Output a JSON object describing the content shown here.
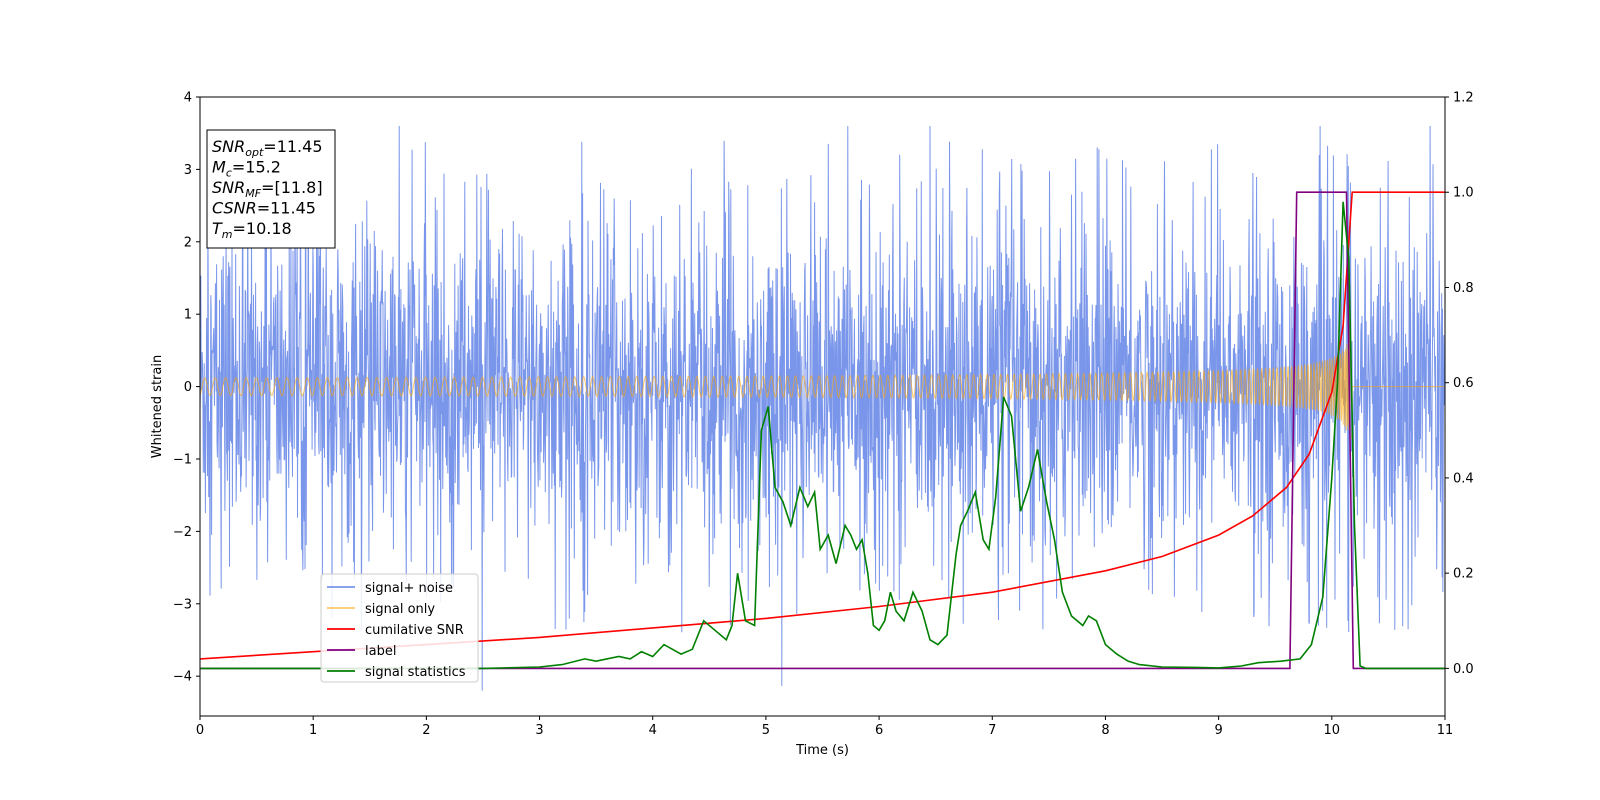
{
  "chart_data": {
    "type": "line",
    "xlabel": "Time (s)",
    "ylabel": "Whitened strain",
    "xlim": [
      0,
      11
    ],
    "ylim_left": [
      -4.55,
      4.0
    ],
    "ylim_right": [
      -0.1,
      1.2
    ],
    "x_ticks": [
      0,
      1,
      2,
      3,
      4,
      5,
      6,
      7,
      8,
      9,
      10,
      11
    ],
    "y_ticks_left": [
      -4,
      -3,
      -2,
      -1,
      0,
      1,
      2,
      3,
      4
    ],
    "y_ticks_right": [
      0.0,
      0.2,
      0.4,
      0.6,
      0.8,
      1.0,
      1.2
    ],
    "y_tick_labels_left": [
      "−4",
      "−3",
      "−2",
      "−1",
      "0",
      "1",
      "2",
      "3",
      "4"
    ],
    "y_tick_labels_right": [
      "0.0",
      "0.2",
      "0.4",
      "0.6",
      "0.8",
      "1.0",
      "1.2"
    ],
    "x_tick_labels": [
      "0",
      "1",
      "2",
      "3",
      "4",
      "5",
      "6",
      "7",
      "8",
      "9",
      "10",
      "11"
    ],
    "grid": false,
    "legend_placement": "lower-left",
    "annotation": {
      "lines": [
        {
          "sym": "SNR",
          "sub": "opt",
          "text": "=11.45"
        },
        {
          "sym": "M",
          "sub": "c",
          "text": "=15.2"
        },
        {
          "sym": "SNR",
          "sub": "MF",
          "text": "=[11.8]"
        },
        {
          "sym": "CSNR",
          "sub": "",
          "text": "=11.45"
        },
        {
          "sym": "T",
          "sub": "m",
          "text": "=10.18"
        }
      ]
    },
    "series": [
      {
        "name": "signal+ noise",
        "color": "#4169e1",
        "axis": "left",
        "kind": "noise",
        "envelope": {
          "typical_amplitude": 2.0,
          "max_spike": 3.6,
          "min_spike": -4.2
        }
      },
      {
        "name": "signal only",
        "color": "#ffa500",
        "axis": "left",
        "kind": "chirp",
        "merger_time": 10.18,
        "peak_amplitude": 0.9
      },
      {
        "name": "cumilative SNR",
        "color": "#ff0000",
        "axis": "right",
        "x": [
          0,
          1,
          2,
          3,
          4,
          5,
          6,
          7,
          8,
          8.5,
          9,
          9.3,
          9.6,
          9.8,
          10.0,
          10.1,
          10.18,
          10.2,
          11
        ],
        "values": [
          0.02,
          0.035,
          0.05,
          0.065,
          0.085,
          0.105,
          0.13,
          0.16,
          0.205,
          0.235,
          0.28,
          0.32,
          0.38,
          0.45,
          0.58,
          0.72,
          1.0,
          1.0,
          1.0
        ]
      },
      {
        "name": "label",
        "color": "#800080",
        "axis": "right",
        "x": [
          0,
          9.63,
          9.69,
          10.13,
          10.19,
          11
        ],
        "values": [
          0,
          0,
          1,
          1,
          0,
          0
        ]
      },
      {
        "name": "signal statistics",
        "color": "#008000",
        "axis": "right",
        "x": [
          0,
          2.5,
          3.0,
          3.2,
          3.4,
          3.5,
          3.7,
          3.8,
          3.9,
          4.0,
          4.1,
          4.25,
          4.35,
          4.45,
          4.55,
          4.65,
          4.7,
          4.75,
          4.82,
          4.9,
          4.96,
          5.02,
          5.08,
          5.15,
          5.22,
          5.3,
          5.37,
          5.43,
          5.48,
          5.55,
          5.62,
          5.7,
          5.75,
          5.8,
          5.85,
          5.9,
          5.95,
          6.0,
          6.05,
          6.1,
          6.15,
          6.22,
          6.3,
          6.38,
          6.45,
          6.52,
          6.6,
          6.68,
          6.72,
          6.78,
          6.85,
          6.92,
          6.97,
          7.03,
          7.1,
          7.17,
          7.25,
          7.32,
          7.4,
          7.48,
          7.55,
          7.62,
          7.7,
          7.8,
          7.85,
          7.92,
          8.0,
          8.1,
          8.2,
          8.3,
          8.5,
          8.8,
          9.0,
          9.2,
          9.35,
          9.55,
          9.72,
          9.82,
          9.92,
          10.0,
          10.05,
          10.1,
          10.15,
          10.2,
          10.25,
          10.3,
          11
        ],
        "values": [
          0.0,
          0.0,
          0.003,
          0.008,
          0.02,
          0.015,
          0.025,
          0.02,
          0.035,
          0.025,
          0.05,
          0.03,
          0.04,
          0.1,
          0.08,
          0.06,
          0.09,
          0.2,
          0.1,
          0.09,
          0.5,
          0.55,
          0.38,
          0.35,
          0.3,
          0.38,
          0.34,
          0.37,
          0.25,
          0.28,
          0.22,
          0.3,
          0.28,
          0.25,
          0.27,
          0.2,
          0.09,
          0.08,
          0.1,
          0.16,
          0.12,
          0.1,
          0.16,
          0.12,
          0.06,
          0.05,
          0.07,
          0.24,
          0.3,
          0.33,
          0.37,
          0.27,
          0.25,
          0.36,
          0.57,
          0.53,
          0.33,
          0.38,
          0.46,
          0.35,
          0.27,
          0.16,
          0.11,
          0.09,
          0.11,
          0.1,
          0.05,
          0.03,
          0.015,
          0.008,
          0.003,
          0.002,
          0.001,
          0.005,
          0.012,
          0.015,
          0.02,
          0.05,
          0.15,
          0.4,
          0.6,
          0.98,
          0.86,
          0.3,
          0.005,
          0.0,
          0.0
        ]
      }
    ]
  }
}
